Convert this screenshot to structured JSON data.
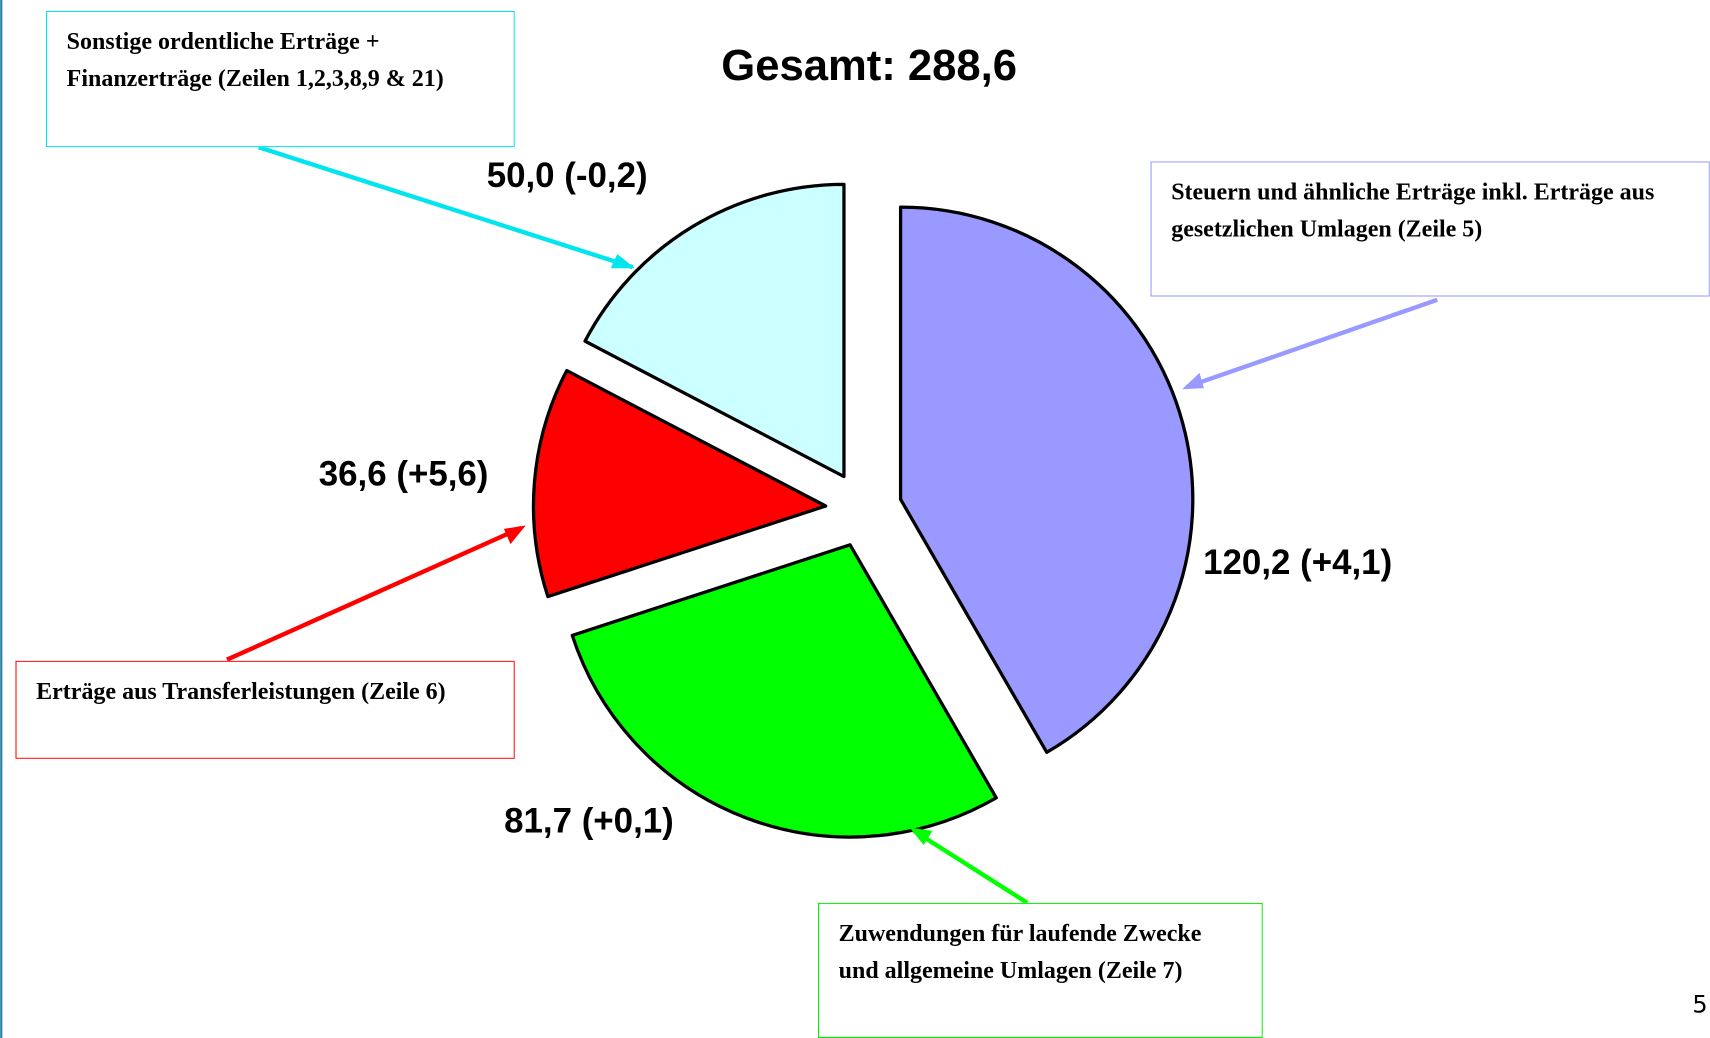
{
  "chart_data": {
    "type": "pie",
    "title": "Gesamt:  288,6",
    "categories": [
      "Steuern und ähnliche Erträge inkl. Erträge aus gesetzlichen Umlagen (Zeile 5)",
      "Zuwendungen für laufende Zwecke und allgemeine Umlagen (Zeile 7)",
      "Erträge aus Transferleistungen (Zeile 6)",
      "Sonstige ordentliche Erträge + Finanzerträge (Zeilen 1,2,3,8,9 & 21)"
    ],
    "values": [
      120.2,
      81.7,
      36.6,
      50.0
    ],
    "value_labels": [
      "120,2 (+4,1)",
      "81,7 (+0,1)",
      "36,6 (+5,6)",
      "50,0 (-0,2)"
    ],
    "colors": [
      "#9999ff",
      "#00ff00",
      "#ff0000",
      "#ccffff"
    ]
  },
  "page_number": "5"
}
